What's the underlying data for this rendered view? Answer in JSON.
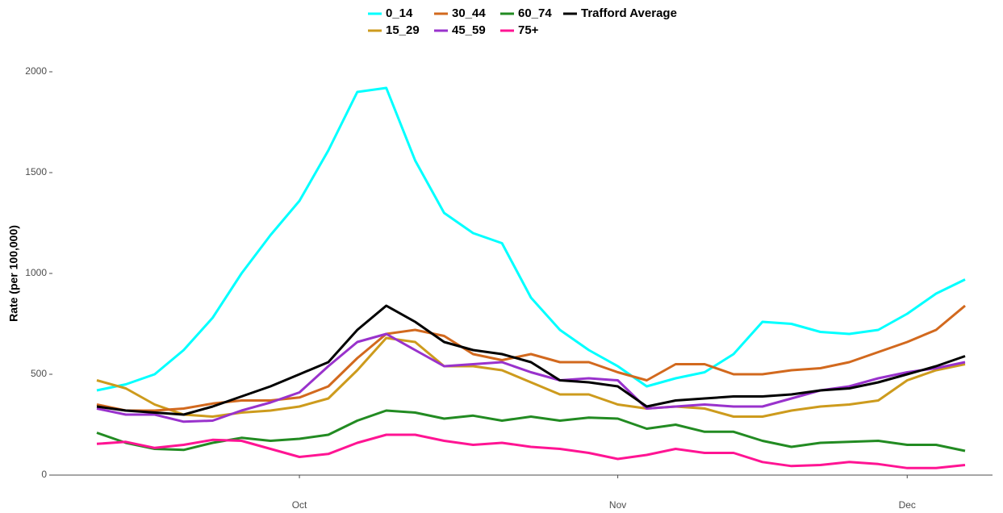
{
  "chart_data": {
    "type": "line",
    "y_label": "Rate (per 100,000)",
    "categories": [
      null,
      null,
      null,
      null,
      null,
      null,
      null,
      "Oct",
      null,
      null,
      null,
      null,
      null,
      null,
      null,
      null,
      null,
      null,
      "Nov",
      null,
      null,
      null,
      null,
      null,
      null,
      null,
      null,
      null,
      "Dec",
      null,
      null
    ],
    "ylim": [
      0,
      2000
    ],
    "yticks": [
      0,
      500,
      1000,
      1500,
      2000
    ],
    "grid": false,
    "legend": "top",
    "series": [
      {
        "name": "0_14",
        "color": "#00ffff",
        "values": [
          420,
          450,
          500,
          620,
          780,
          1000,
          1190,
          1360,
          1610,
          1900,
          1920,
          1560,
          1300,
          1200,
          1150,
          880,
          720,
          620,
          540,
          440,
          480,
          510,
          600,
          760,
          750,
          710,
          700,
          720,
          800,
          900,
          970
        ]
      },
      {
        "name": "15_29",
        "color": "#cd9b1d",
        "values": [
          470,
          430,
          350,
          300,
          290,
          310,
          320,
          340,
          380,
          520,
          680,
          660,
          540,
          540,
          520,
          460,
          400,
          400,
          350,
          330,
          340,
          330,
          290,
          290,
          320,
          340,
          350,
          370,
          470,
          520,
          550
        ]
      },
      {
        "name": "30_44",
        "color": "#d2691e",
        "values": [
          350,
          320,
          320,
          330,
          355,
          370,
          370,
          385,
          440,
          580,
          700,
          720,
          690,
          600,
          570,
          600,
          560,
          560,
          510,
          470,
          550,
          550,
          500,
          500,
          520,
          530,
          560,
          610,
          660,
          720,
          840
        ]
      },
      {
        "name": "45_59",
        "color": "#9932cc",
        "values": [
          330,
          300,
          300,
          265,
          270,
          320,
          360,
          410,
          540,
          660,
          700,
          620,
          540,
          550,
          560,
          510,
          470,
          480,
          470,
          330,
          340,
          350,
          340,
          340,
          380,
          420,
          440,
          480,
          510,
          530,
          560
        ]
      },
      {
        "name": "60_74",
        "color": "#228b22",
        "values": [
          210,
          160,
          130,
          125,
          160,
          185,
          170,
          180,
          200,
          270,
          320,
          310,
          280,
          295,
          270,
          290,
          270,
          285,
          280,
          230,
          250,
          215,
          215,
          170,
          140,
          160,
          165,
          170,
          150,
          150,
          120
        ]
      },
      {
        "name": "75+",
        "color": "#ff1493",
        "values": [
          155,
          165,
          135,
          150,
          175,
          170,
          130,
          90,
          105,
          160,
          200,
          200,
          170,
          150,
          160,
          140,
          130,
          110,
          80,
          100,
          130,
          110,
          110,
          65,
          45,
          50,
          65,
          55,
          35,
          35,
          50
        ]
      },
      {
        "name": "Trafford Average",
        "color": "#000000",
        "values": [
          340,
          320,
          310,
          300,
          340,
          390,
          440,
          500,
          560,
          720,
          840,
          760,
          660,
          620,
          600,
          560,
          470,
          460,
          440,
          340,
          370,
          380,
          390,
          390,
          400,
          420,
          430,
          460,
          500,
          540,
          590
        ]
      }
    ]
  }
}
